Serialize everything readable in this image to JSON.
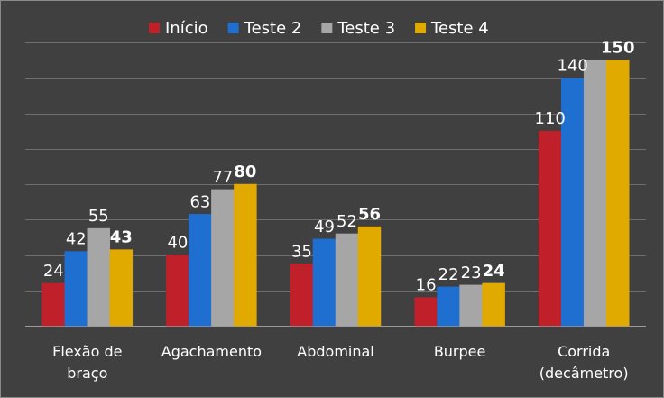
{
  "chart_data": {
    "type": "bar",
    "title": "",
    "xlabel": "",
    "ylabel": "",
    "ylim": [
      0,
      160
    ],
    "grid": true,
    "legend_position": "top",
    "categories": [
      [
        "Flexão de",
        "braço"
      ],
      [
        "Agachamento"
      ],
      [
        "Abdominal"
      ],
      [
        "Burpee"
      ],
      [
        "Corrida",
        "(decâmetro)"
      ]
    ],
    "series": [
      {
        "name": "Início",
        "color": "#c0202a",
        "values": [
          24,
          40,
          35,
          16,
          110
        ]
      },
      {
        "name": "Teste 2",
        "color": "#1f6fd1",
        "values": [
          42,
          63,
          49,
          22,
          140
        ]
      },
      {
        "name": "Teste 3",
        "color": "#a6a6a6",
        "values": [
          55,
          77,
          52,
          23,
          150
        ]
      },
      {
        "name": "Teste 4",
        "color": "#e0aa00",
        "values": [
          43,
          80,
          56,
          24,
          150
        ]
      }
    ],
    "data_labels": [
      [
        "24",
        "40",
        "35",
        "16",
        "110"
      ],
      [
        "42",
        "63",
        "49",
        "22",
        "140"
      ],
      [
        "55",
        "77",
        "52",
        "23",
        ""
      ],
      [
        "43",
        "80",
        "56",
        "24",
        "150"
      ]
    ]
  }
}
